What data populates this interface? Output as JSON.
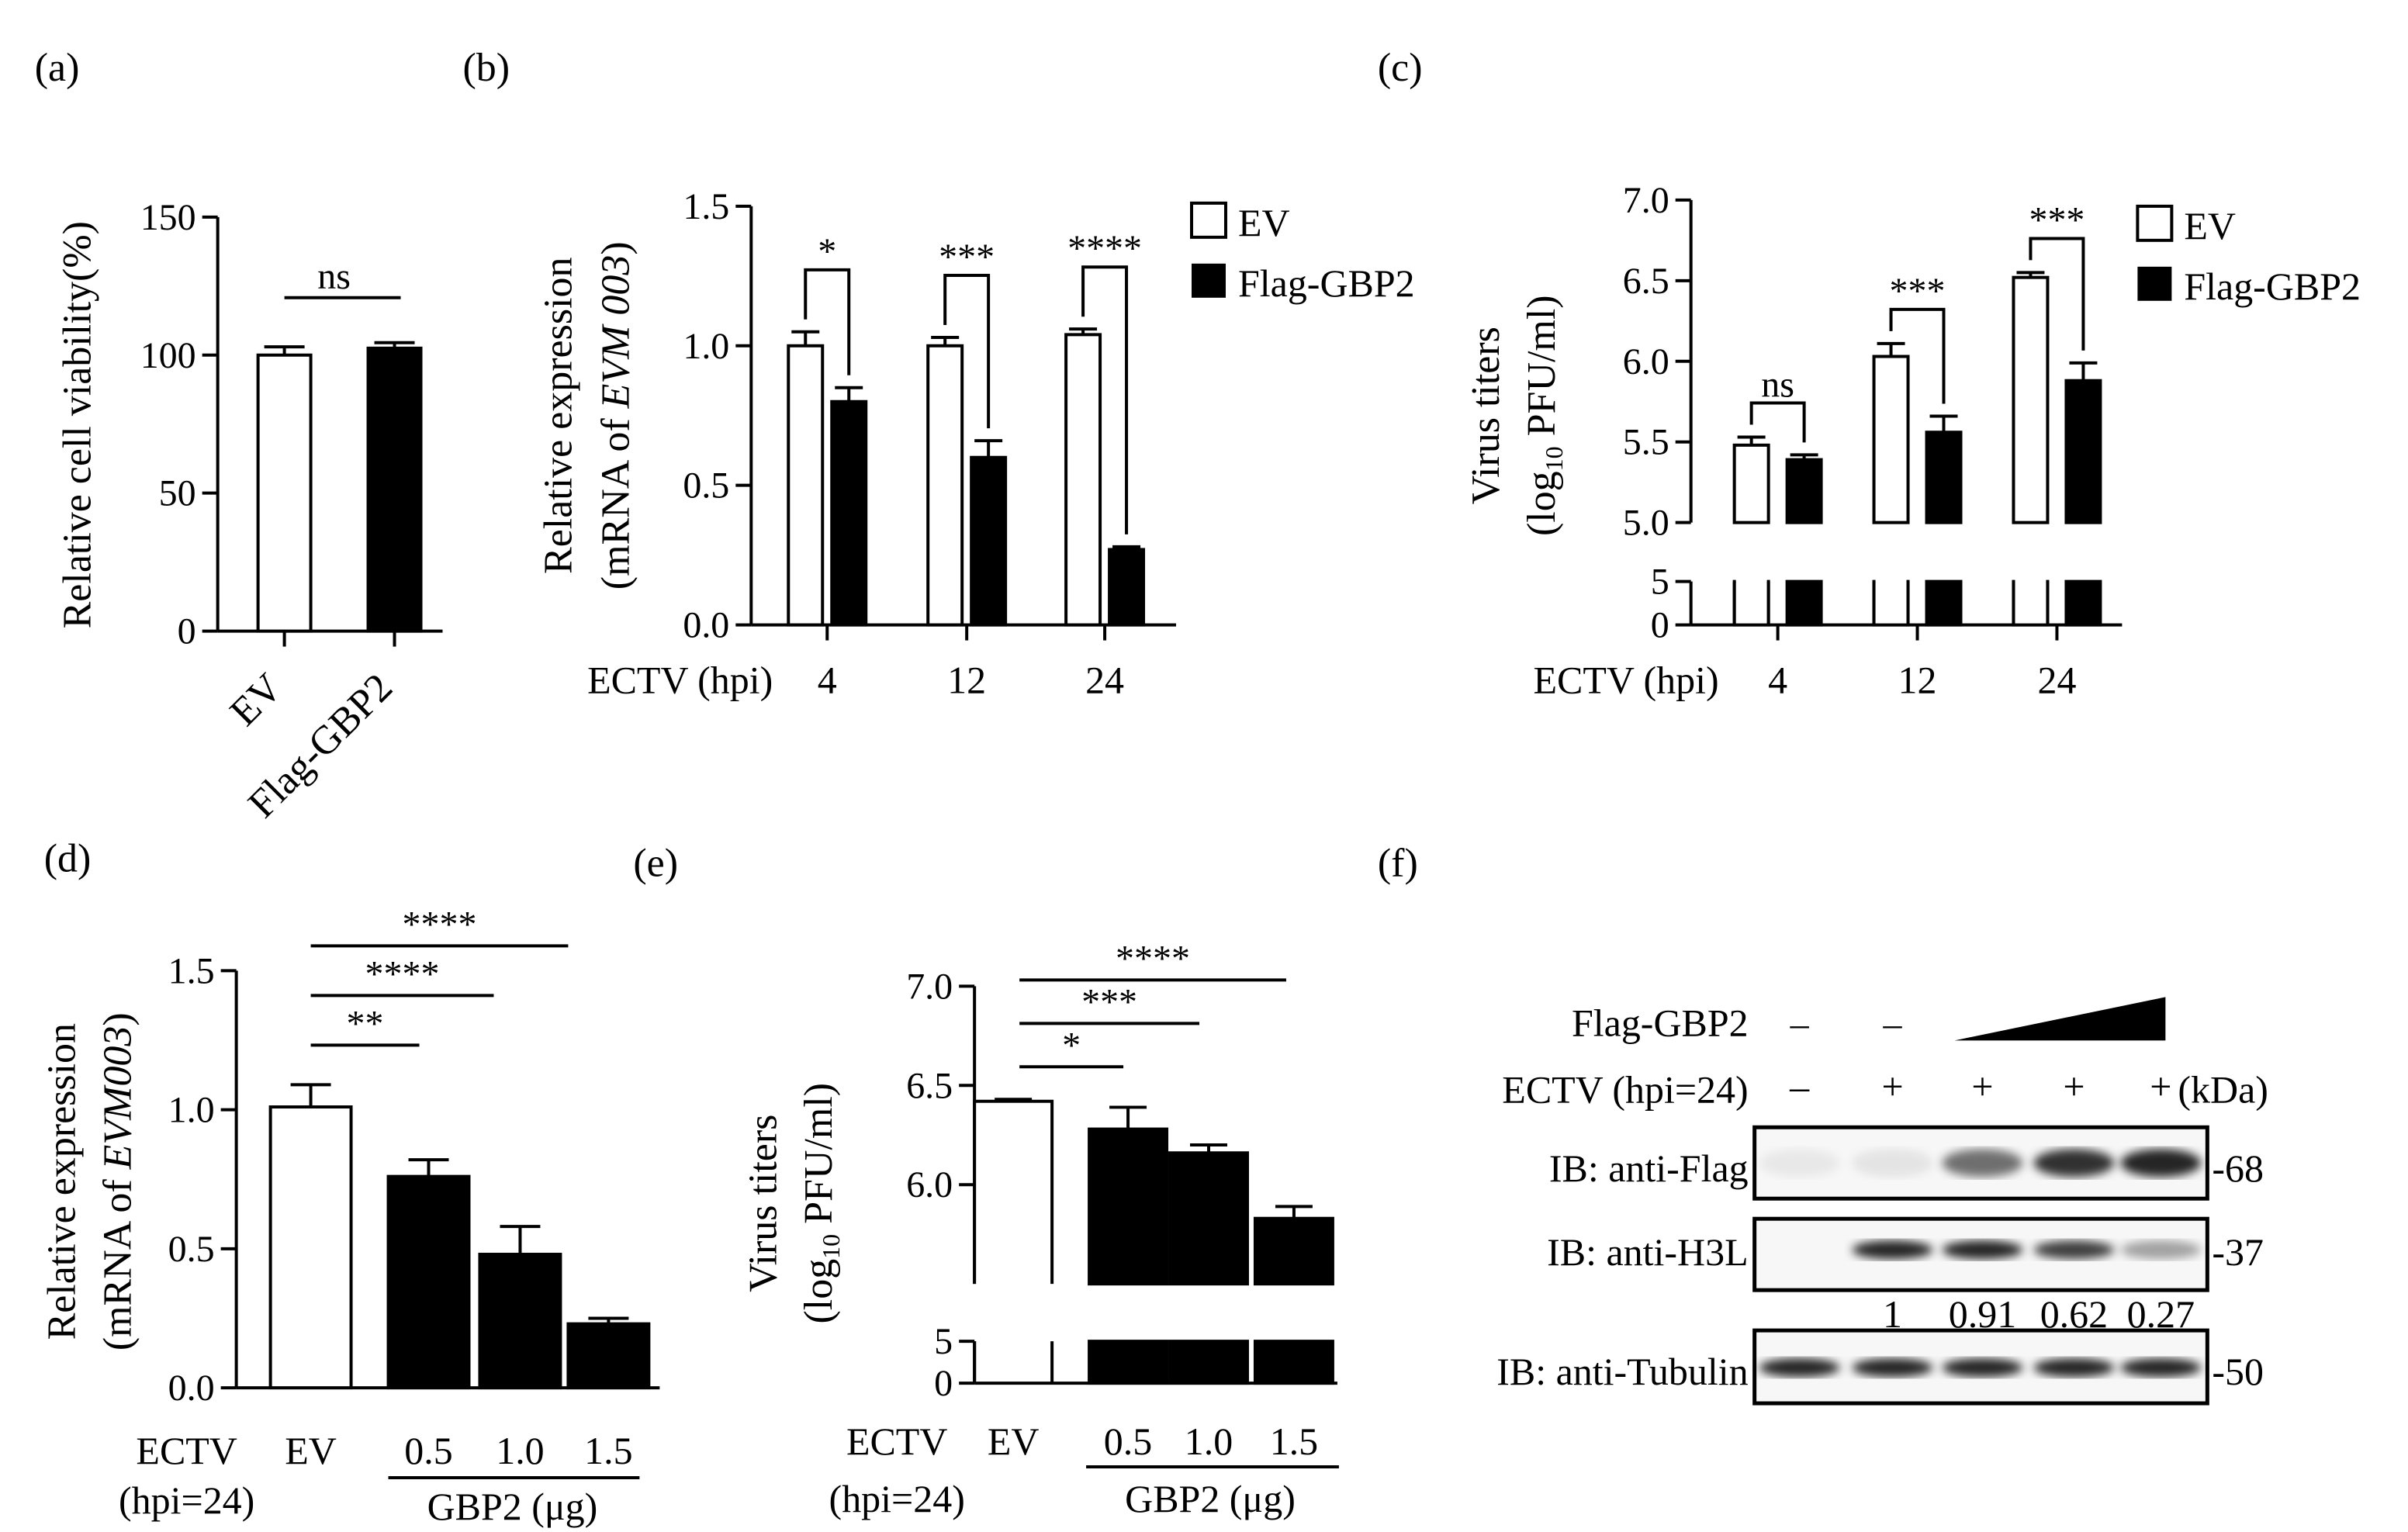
{
  "panel_labels": {
    "a": "(a)",
    "b": "(b)",
    "c": "(c)",
    "d": "(d)",
    "e": "(e)",
    "f": "(f)"
  },
  "legend": {
    "ev": "EV",
    "flag": "Flag-GBP2"
  },
  "chart_data": [
    {
      "panel": "a",
      "type": "bar",
      "ylabel": "Relative cell viability(%)",
      "ylim": [
        0,
        150
      ],
      "yticks": [
        0,
        50,
        100,
        150
      ],
      "categories": [
        "EV",
        "Flag-GBP2"
      ],
      "values": [
        100,
        102.5
      ],
      "errors": [
        3,
        2
      ],
      "fills": [
        "white",
        "black"
      ],
      "sig": [
        {
          "from": 0,
          "to": 1,
          "label": "ns"
        }
      ]
    },
    {
      "panel": "b",
      "type": "bar",
      "ylabel1": "Relative  expression",
      "ylabel2_prefix": "(mRNA of ",
      "ylabel2_italic": "EVM 003",
      "ylabel2_suffix": ")",
      "ylim": [
        0,
        1.5
      ],
      "yticks": [
        "0.0",
        "0.5",
        "1.0",
        "1.5"
      ],
      "xtitle": "ECTV (hpi)",
      "categories": [
        "4",
        "12",
        "24"
      ],
      "series": [
        {
          "name": "EV",
          "values": [
            1.0,
            1.0,
            1.04
          ],
          "errors": [
            0.05,
            0.03,
            0.02
          ]
        },
        {
          "name": "Flag-GBP2",
          "values": [
            0.8,
            0.6,
            0.27
          ],
          "errors": [
            0.05,
            0.06,
            0.01
          ]
        }
      ],
      "sig": [
        "*",
        "***",
        "****"
      ]
    },
    {
      "panel": "c",
      "type": "bar",
      "ylabel1": "Virus titers",
      "ylabel2_prefix": "(log",
      "ylabel2_sub": "10",
      "ylabel2_suffix": " PFU/ml)",
      "ylim_upper": [
        5.0,
        7.0
      ],
      "yticks_upper": [
        "5.0",
        "5.5",
        "6.0",
        "6.5",
        "7.0"
      ],
      "ylim_lower": [
        0,
        5
      ],
      "yticks_lower": [
        "0",
        "5"
      ],
      "xtitle": "ECTV (hpi)",
      "categories": [
        "4",
        "12",
        "24"
      ],
      "series": [
        {
          "name": "EV",
          "values": [
            5.48,
            6.03,
            6.52
          ],
          "errors": [
            0.05,
            0.08,
            0.03
          ]
        },
        {
          "name": "Flag-GBP2",
          "values": [
            5.39,
            5.56,
            5.88
          ],
          "errors": [
            0.03,
            0.1,
            0.11
          ]
        }
      ],
      "sig": [
        "ns",
        "***",
        "***"
      ]
    },
    {
      "panel": "d",
      "type": "bar",
      "ylabel1": "Relative  expression",
      "ylabel2_prefix": "(mRNA of ",
      "ylabel2_italic": "EVM003",
      "ylabel2_suffix": ")",
      "ylim": [
        0,
        1.5
      ],
      "yticks": [
        "0.0",
        "0.5",
        "1.0",
        "1.5"
      ],
      "xtitle1": "ECTV",
      "xtitle2": "(hpi=24)",
      "group_label": "GBP2 (μg)",
      "categories": [
        "EV",
        "0.5",
        "1.0",
        "1.5"
      ],
      "values": [
        1.01,
        0.76,
        0.48,
        0.23
      ],
      "errors": [
        0.08,
        0.06,
        0.1,
        0.02
      ],
      "fills": [
        "white",
        "black",
        "black",
        "black"
      ],
      "sig": [
        {
          "from": 0,
          "to": 1,
          "label": "**"
        },
        {
          "from": 0,
          "to": 2,
          "label": "****"
        },
        {
          "from": 0,
          "to": 3,
          "label": "****"
        }
      ]
    },
    {
      "panel": "e",
      "type": "bar",
      "ylabel1": "Virus titers",
      "ylabel2_prefix": "(log",
      "ylabel2_sub": "10",
      "ylabel2_suffix": " PFU/ml)",
      "ylim_upper": [
        5.5,
        7.0
      ],
      "yticks_upper": [
        "6.0",
        "6.5",
        "7.0"
      ],
      "ylim_lower": [
        0,
        5
      ],
      "yticks_lower": [
        "0",
        "5"
      ],
      "xtitle1": "ECTV",
      "xtitle2": "(hpi=24)",
      "group_label": "GBP2 (μg)",
      "categories": [
        "EV",
        "0.5",
        "1.0",
        "1.5"
      ],
      "values": [
        6.42,
        6.28,
        6.16,
        5.83
      ],
      "errors": [
        0.01,
        0.11,
        0.04,
        0.06
      ],
      "fills": [
        "white",
        "black",
        "black",
        "black"
      ],
      "sig": [
        {
          "from": 0,
          "to": 1,
          "label": "*"
        },
        {
          "from": 0,
          "to": 2,
          "label": "***"
        },
        {
          "from": 0,
          "to": 3,
          "label": "****"
        }
      ]
    }
  ],
  "blot": {
    "row_flag": "Flag-GBP2",
    "row_ectv": "ECTV (hpi=24)",
    "flag_marks": [
      "–",
      "–"
    ],
    "ectv_marks": [
      "–",
      "+",
      "+",
      "+",
      "+"
    ],
    "kda": "(kDa)",
    "rows": [
      {
        "label": "IB: anti-Flag",
        "kda": "-68",
        "intensities": [
          0.06,
          0.08,
          0.55,
          0.8,
          0.85
        ]
      },
      {
        "label": "IB: anti-H3L",
        "kda": "-37",
        "intensities": [
          0.0,
          0.85,
          0.85,
          0.75,
          0.35
        ]
      },
      {
        "label": "IB: anti-Tubulin",
        "kda": "-50",
        "intensities": [
          0.85,
          0.85,
          0.85,
          0.85,
          0.85
        ]
      }
    ],
    "quant": [
      "1",
      "0.91",
      "0.62",
      "0.27"
    ]
  }
}
